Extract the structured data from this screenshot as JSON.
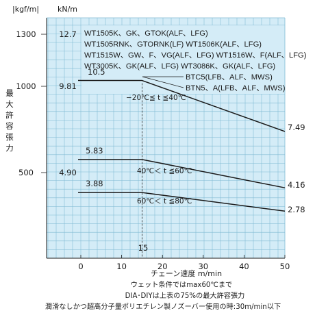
{
  "chart_data": {
    "type": "line",
    "xlabel": "チェーン速度 m/min",
    "xlim": [
      0,
      50
    ],
    "x_ticks": [
      "0",
      "10",
      "20",
      "30",
      "40",
      "50"
    ],
    "left_unit_kgf": "|kgf/m|",
    "left_unit_kn": "kN/m",
    "ylabel": "最大許容張力",
    "kgf_ticks": [
      {
        "label": "1300",
        "kn": 12.7
      },
      {
        "label": "1000",
        "kn": 9.81
      },
      {
        "label": "500",
        "kn": 4.9
      }
    ],
    "kn_ticks": [
      {
        "label": "12.7",
        "kn": 12.7
      },
      {
        "label": "9.81",
        "kn": 9.81
      },
      {
        "label": "4.90",
        "kn": 4.9
      }
    ],
    "ylim_kn": [
      0,
      14.2
    ],
    "grid": true,
    "series": [
      {
        "range": "−20℃≦ t ≦40℃",
        "start_label": "10.5",
        "end_label": "7.49",
        "points": [
          [
            0,
            10.5
          ],
          [
            15,
            10.5
          ],
          [
            50,
            7.49
          ]
        ]
      },
      {
        "range": "40℃＜ t ≦60℃",
        "start_label": "5.83",
        "end_label": "4.16",
        "points": [
          [
            0,
            5.83
          ],
          [
            15,
            5.83
          ],
          [
            50,
            4.16
          ]
        ]
      },
      {
        "range": "60℃＜ t ≦80℃",
        "start_label": "3.88",
        "end_label": "2.78",
        "points": [
          [
            0,
            3.88
          ],
          [
            15,
            3.88
          ],
          [
            50,
            2.78
          ]
        ]
      }
    ],
    "break_x": 15,
    "break_label": "15",
    "models": [
      "WT1505K、GK、GTOK(ALF、LFG)",
      "WT1505RNK、GTORNK(LF)  WT1506K(ALF、LFG)",
      "WT1515W、GW、F、VG(ALF、LFG)  WT1516W、F(ALF、LFG)",
      "WT3005K、GK(ALF、LFG)  WT3086K、GK(ALF、LFG)",
      "BTC5(LFB、ALF、MWS)",
      "BTN5、A(LFB、ALF、MWS)"
    ],
    "notes": [
      "ウェット条件ではmax60℃まで",
      "DIA･DIYは上表の75%の最大許容張力",
      "潤滑なしかつ超高分子量ポリエチレン製ノズーバー使用の時:30m/min以下"
    ]
  }
}
